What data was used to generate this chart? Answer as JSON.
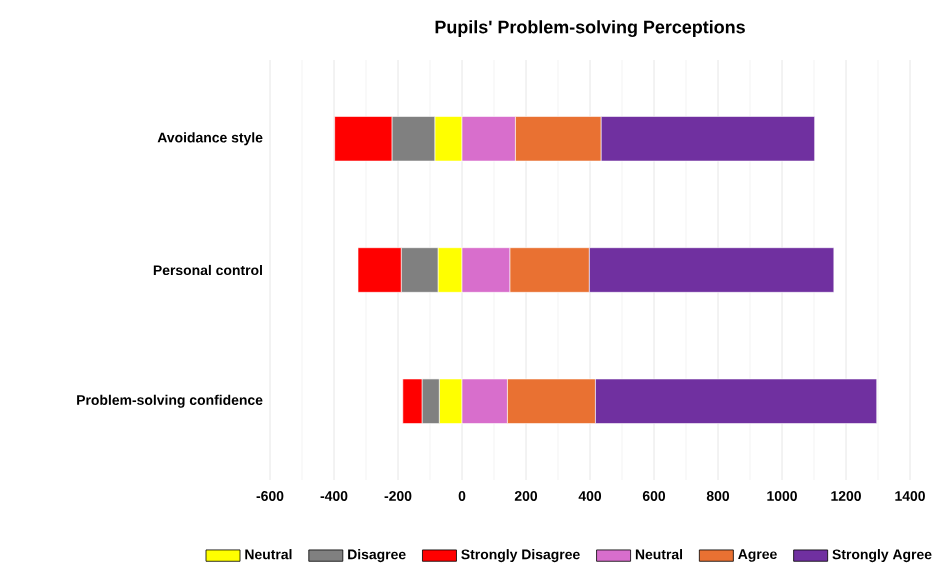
{
  "chart_data": {
    "type": "bar",
    "orientation": "horizontal",
    "stacked": true,
    "title": "Pupils' Problem-solving Perceptions",
    "categories": [
      "Avoidance style",
      "Personal control",
      "Problem-solving confidence"
    ],
    "series": [
      {
        "name": "Neutral",
        "color": "#ffff00",
        "values": [
          -85,
          -75,
          -71
        ]
      },
      {
        "name": "Disagree",
        "color": "#808080",
        "values": [
          -134,
          -115,
          -54
        ]
      },
      {
        "name": "Strongly Disagree",
        "color": "#ff0000",
        "values": [
          -179,
          -135,
          -60
        ]
      },
      {
        "name": "Neutral",
        "color": "#d86ecc",
        "values": [
          167,
          150,
          142
        ]
      },
      {
        "name": "Agree",
        "color": "#e97132",
        "values": [
          268,
          248,
          275
        ]
      },
      {
        "name": "Strongly Agree",
        "color": "#7030a0",
        "values": [
          667,
          764,
          879
        ]
      }
    ],
    "xlim": [
      -600,
      1400
    ],
    "xticks": [
      -600,
      -400,
      -200,
      0,
      200,
      400,
      600,
      800,
      1000,
      1200,
      1400
    ],
    "grid": "x",
    "legend": "bottom"
  }
}
